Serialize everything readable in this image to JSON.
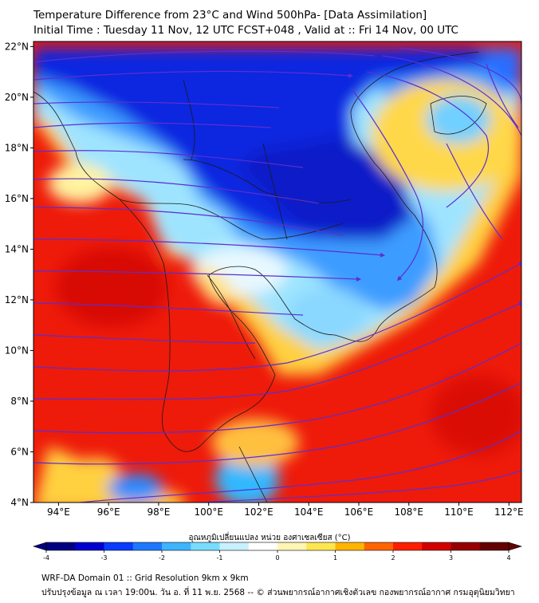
{
  "title": {
    "line1": "Temperature Difference from 23°C and Wind 500hPa- [Data Assimilation]",
    "line2": "Initial Time : Tuesday 11 Nov, 12 UTC FCST+048 , Valid at ::  Fri 14 Nov, 00 UTC"
  },
  "map": {
    "lon_range": [
      93,
      112.5
    ],
    "lat_range": [
      4,
      22.2
    ],
    "lat_ticks": [
      "22°N",
      "20°N",
      "18°N",
      "16°N",
      "14°N",
      "12°N",
      "10°N",
      "8°N",
      "6°N",
      "4°N"
    ],
    "lon_ticks": [
      "94°E",
      "96°E",
      "98°E",
      "100°E",
      "102°E",
      "104°E",
      "106°E",
      "108°E",
      "110°E",
      "112°E"
    ]
  },
  "colorbar": {
    "title": "อุณหภูมิเปลี่ยนแปลง หน่วย องศาเซลเซียส (°C)",
    "ticks": [
      "-4",
      "-3",
      "-2",
      "-1",
      "0",
      "1",
      "2",
      "3",
      "4"
    ],
    "min": -4,
    "max": 4,
    "colors": [
      "#000080",
      "#0000cd",
      "#0a3cff",
      "#1e78ff",
      "#3cb4ff",
      "#78dcff",
      "#c8f0ff",
      "#ffffff",
      "#fff5b4",
      "#ffe650",
      "#ffb400",
      "#ff6400",
      "#ff1e00",
      "#d20000",
      "#960000",
      "#640000"
    ]
  },
  "footer": {
    "line1": "WRF-DA Domain 01 :: Grid Resolution 9km x 9km",
    "line2": "ปรับปรุงข้อมูล ณ เวลา 19:00น. วัน อ. ที่ 11 พ.ย. 2568 -- © ส่วนพยากรณ์อากาศเชิงตัวเลข กองพยากรณ์อากาศ กรมอุตุนิยมวิทยา"
  }
}
